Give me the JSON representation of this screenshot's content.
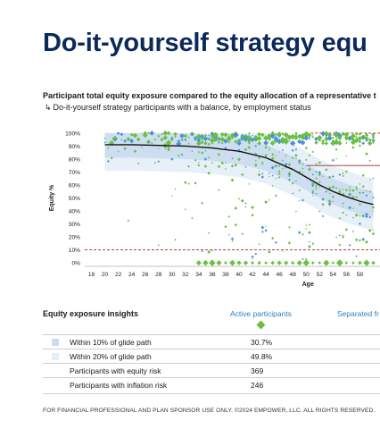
{
  "page": {
    "title": "Do-it-yourself strategy equ",
    "subtitle": "Participant total equity exposure compared to the equity allocation of a representative t",
    "subtitle2": "Do-it-yourself strategy participants with a balance, by employment status",
    "footer": "FOR FINANCIAL PROFESSIONAL AND PLAN SPONSOR USE ONLY. ©2024 EMPOWER, LLC. ALL RIGHTS RESERVED."
  },
  "colors": {
    "title": "#0b2a5b",
    "band20": "#e4eef7",
    "band10": "#c9dcee",
    "glide": "#111111",
    "green": "#6bbf3f",
    "blue": "#4a90d9",
    "ref_line": "#a52a2a"
  },
  "chart_data": {
    "type": "scatter",
    "xlabel": "Age",
    "ylabel": "Equity %",
    "x_ticks": [
      18,
      20,
      22,
      24,
      26,
      28,
      30,
      32,
      34,
      36,
      38,
      40,
      42,
      44,
      46,
      48,
      50,
      52,
      54,
      56,
      58
    ],
    "y_ticks": [
      "0%",
      "10%",
      "20%",
      "30%",
      "40%",
      "50%",
      "60%",
      "70%",
      "80%",
      "90%",
      "100%"
    ],
    "xlim": [
      17,
      61
    ],
    "ylim": [
      -2,
      102
    ],
    "grid": false,
    "glide_path": {
      "x": [
        20,
        24,
        28,
        32,
        36,
        40,
        44,
        48,
        50,
        52,
        54,
        56,
        58,
        60
      ],
      "y": [
        91,
        91,
        90.5,
        90,
        88.5,
        86,
        81,
        72,
        66,
        60,
        55,
        51,
        47.5,
        45
      ]
    },
    "bands": [
      {
        "name": "Within 20% of glide path",
        "upper": [
          100,
          100,
          100,
          100,
          100,
          100,
          100,
          92,
          86,
          80,
          75,
          71,
          67.5,
          65
        ],
        "lower": [
          71,
          71,
          70.5,
          70,
          68.5,
          66,
          61,
          52,
          46,
          40,
          35,
          31,
          27.5,
          25
        ]
      },
      {
        "name": "Within 10% of glide path",
        "upper": [
          100,
          100,
          100,
          100,
          98.5,
          96,
          91,
          82,
          76,
          70,
          65,
          61,
          57.5,
          55
        ],
        "lower": [
          81,
          81,
          80.5,
          80,
          78.5,
          76,
          71,
          62,
          56,
          50,
          45,
          41,
          37.5,
          35
        ]
      }
    ],
    "reference_lines": [
      {
        "y": 10,
        "from_x": 17,
        "style": "dashed"
      },
      {
        "y": 75,
        "from_x": 50,
        "style": "solid"
      },
      {
        "y": 100,
        "from_x": 50,
        "style": "dashed"
      }
    ],
    "series": [
      {
        "name": "Active participants",
        "marker": "diamond"
      }
    ]
  },
  "insights": {
    "heading": "Equity exposure insights",
    "columns": [
      "Active participants",
      "Separated fr"
    ],
    "rows": [
      {
        "label": "Within 10% of glide path",
        "value": "30.7%",
        "swatch": "#c9dcee"
      },
      {
        "label": "Within 20% of glide path",
        "value": "49.8%",
        "swatch": "#e4eef7"
      },
      {
        "label": "Participants with equity risk",
        "value": "369",
        "swatch": ""
      },
      {
        "label": "Participants with inflation risk",
        "value": "246",
        "swatch": ""
      }
    ]
  }
}
